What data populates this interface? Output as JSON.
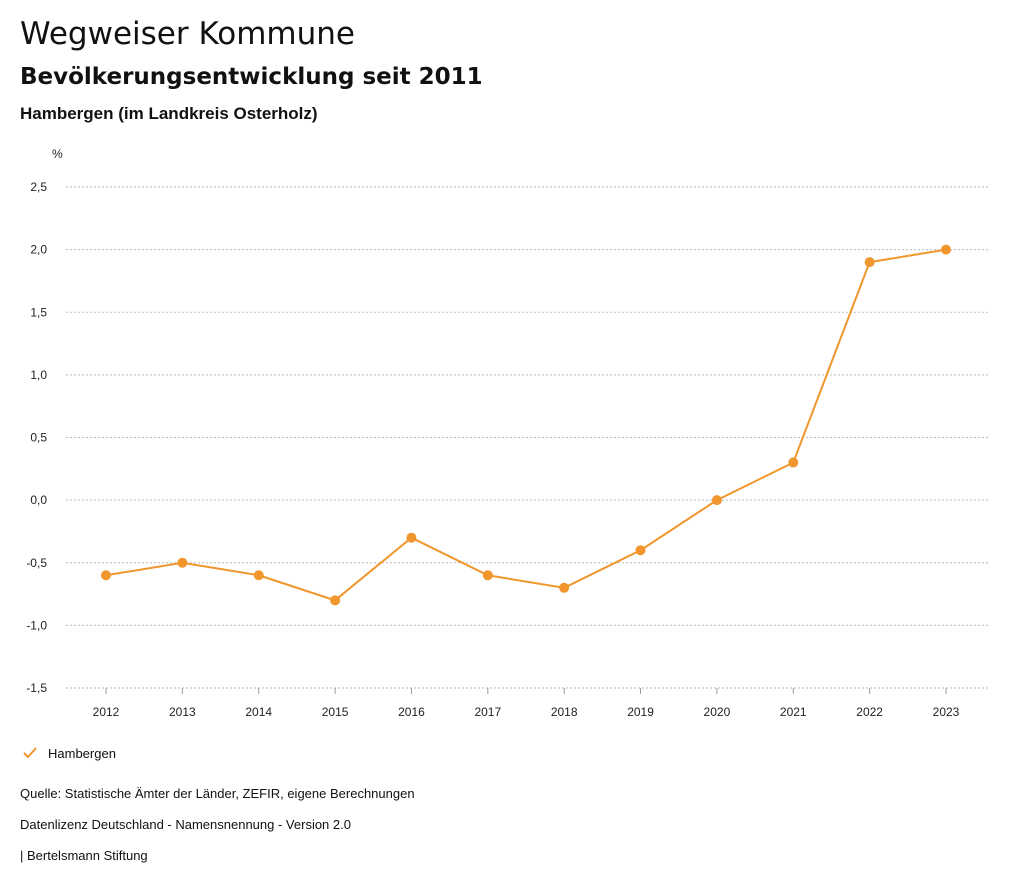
{
  "header": {
    "title": "Wegweiser Kommune",
    "subtitle": "Bevölkerungsentwicklung seit 2011",
    "region": "Hambergen (im Landkreis Osterholz)"
  },
  "legend": {
    "label": "Hambergen"
  },
  "footer": {
    "source": "Quelle: Statistische Ämter der Länder, ZEFIR, eigene Berechnungen",
    "license": "Datenlizenz Deutschland - Namensnennung - Version 2.0",
    "publisher": "| Bertelsmann Stiftung"
  },
  "colors": {
    "series": "#F0962D",
    "grid": "#bbbbbb"
  },
  "chart_data": {
    "type": "line",
    "title": "Bevölkerungsentwicklung seit 2011",
    "ylabel": "%",
    "xlabel": "",
    "x": [
      "2012",
      "2013",
      "2014",
      "2015",
      "2016",
      "2017",
      "2018",
      "2019",
      "2020",
      "2021",
      "2022",
      "2023"
    ],
    "series": [
      {
        "name": "Hambergen",
        "values": [
          -0.6,
          -0.5,
          -0.6,
          -0.8,
          -0.3,
          -0.6,
          -0.7,
          -0.4,
          0.0,
          0.3,
          1.9,
          2.0
        ]
      }
    ],
    "ylim": [
      -1.5,
      2.5
    ],
    "yticks": [
      2.5,
      2.0,
      1.5,
      1.0,
      0.5,
      0.0,
      -0.5,
      -1.0,
      -1.5
    ],
    "ytick_labels": [
      "2,5",
      "2,0",
      "1,5",
      "1,0",
      "0,5",
      "0,0",
      "-0,5",
      "-1,0",
      "-1,5"
    ],
    "grid": true,
    "legend_position": "bottom-left"
  }
}
